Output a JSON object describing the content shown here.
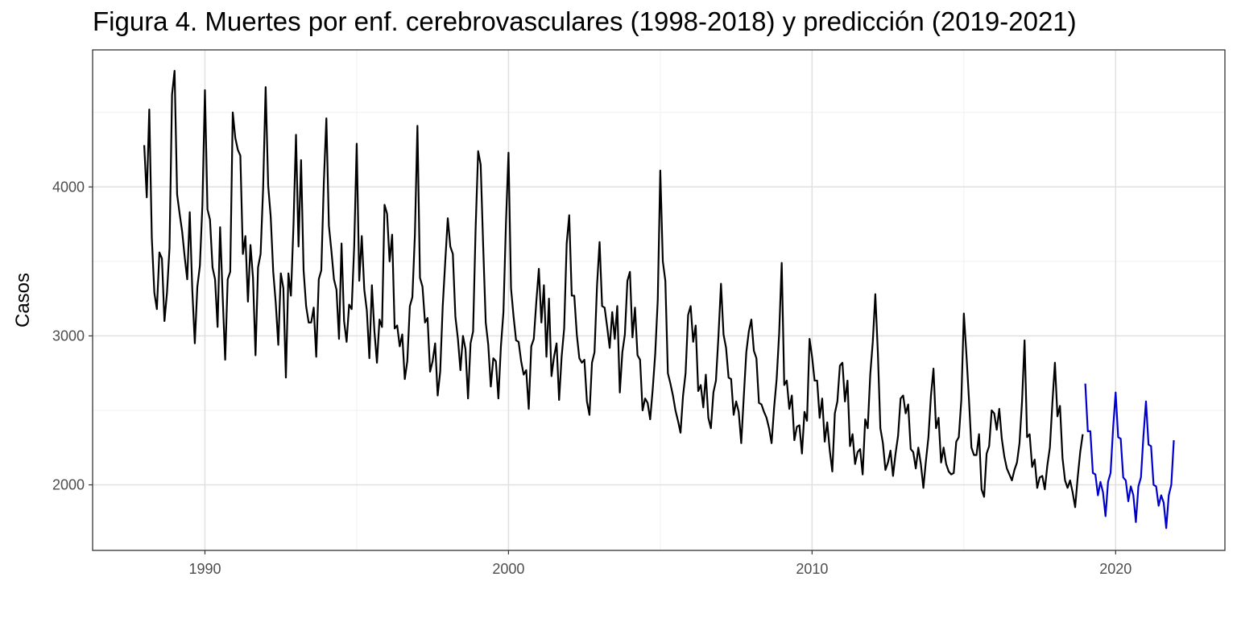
{
  "chart_data": {
    "type": "line",
    "title": "Figura 4. Muertes por enf. cerebrovasculares (1998-2018) y predicción (2019-2021)",
    "xlabel": "",
    "ylabel": "Casos",
    "xlim": [
      1986.3,
      2023.6
    ],
    "ylim": [
      1560,
      4920
    ],
    "x_ticks": [
      1990,
      2000,
      2010,
      2020
    ],
    "x_tick_labels": [
      "1990",
      "2000",
      "2010",
      "2020"
    ],
    "y_ticks": [
      2000,
      3000,
      4000
    ],
    "y_tick_labels": [
      "2000",
      "3000",
      "4000"
    ],
    "grid": true,
    "legend": "none",
    "colors": {
      "observed": "#000000",
      "forecast": "#0000cc",
      "grid_major": "#e0e0e0",
      "grid_minor": "#f0f0f0",
      "panel_border": "#333333"
    },
    "start_year": 1988,
    "series": [
      {
        "values": [
          4280,
          3930,
          4520,
          3660,
          3290,
          3180,
          3560,
          3520,
          3100,
          3290,
          3590,
          4620,
          4780,
          3950,
          3820,
          3700,
          3530,
          3380,
          3830,
          3310,
          2950,
          3330,
          3470,
          3880,
          4650,
          3850,
          3780,
          3460,
          3380,
          3060,
          3730,
          3270,
          2840,
          3380,
          3430,
          4500,
          4330,
          4250,
          4210,
          3550,
          3670,
          3230,
          3610,
          3390,
          2870,
          3460,
          3550,
          3990,
          4670,
          4010,
          3800,
          3430,
          3220,
          2940,
          3420,
          3320,
          2720,
          3420,
          3270,
          3740,
          4350,
          3600,
          4180,
          3440,
          3200,
          3090,
          3090,
          3190,
          2860,
          3380,
          3440,
          4030,
          4460,
          3740,
          3570,
          3380,
          3310,
          2980,
          3620,
          3100,
          2960,
          3210,
          3180,
          3600,
          4290,
          3370,
          3670,
          3310,
          3170,
          2850,
          3340,
          3030,
          2820,
          3110,
          3060,
          3880,
          3820,
          3500,
          3680,
          3050,
          3070,
          2930,
          3010,
          2710,
          2830,
          3200,
          3260,
          3680,
          4410,
          3390,
          3330,
          3090,
          3120,
          2760,
          2830,
          2950,
          2600,
          2760,
          3200,
          3500,
          3790,
          3600,
          3550,
          3130,
          2980,
          2770,
          3000,
          2910,
          2580,
          2950,
          3030,
          3720,
          4240,
          4150,
          3600,
          3090,
          2940,
          2660,
          2850,
          2830,
          2580,
          2930,
          3160,
          3760,
          4230,
          3320,
          3130,
          2970,
          2960,
          2830,
          2740,
          2770,
          2510,
          2930,
          2980,
          3230,
          3450,
          3090,
          3340,
          2860,
          3250,
          2730,
          2860,
          2950,
          2570,
          2860,
          3050,
          3620,
          3810,
          3270,
          3270,
          3010,
          2850,
          2820,
          2840,
          2560,
          2470,
          2820,
          2890,
          3340,
          3630,
          3200,
          3190,
          3060,
          2920,
          3160,
          2980,
          3200,
          2620,
          2890,
          3010,
          3370,
          3430,
          2990,
          3190,
          2870,
          2840,
          2500,
          2580,
          2550,
          2440,
          2640,
          2880,
          3240,
          4110,
          3500,
          3370,
          2750,
          2680,
          2600,
          2500,
          2430,
          2350,
          2600,
          2750,
          3140,
          3200,
          2960,
          3070,
          2630,
          2670,
          2520,
          2740,
          2450,
          2380,
          2620,
          2700,
          3000,
          3350,
          3010,
          2920,
          2720,
          2710,
          2470,
          2560,
          2490,
          2280,
          2590,
          2890,
          3030,
          3110,
          2900,
          2850,
          2550,
          2540,
          2490,
          2450,
          2380,
          2280,
          2520,
          2710,
          3020,
          3490,
          2670,
          2700,
          2510,
          2600,
          2300,
          2390,
          2400,
          2210,
          2490,
          2430,
          2980,
          2860,
          2700,
          2700,
          2450,
          2580,
          2290,
          2420,
          2230,
          2090,
          2480,
          2560,
          2800,
          2820,
          2560,
          2700,
          2260,
          2340,
          2140,
          2220,
          2240,
          2070,
          2440,
          2380,
          2740,
          2960,
          3280,
          2890,
          2380,
          2280,
          2100,
          2150,
          2230,
          2060,
          2210,
          2330,
          2580,
          2600,
          2480,
          2540,
          2240,
          2220,
          2110,
          2250,
          2140,
          1980,
          2160,
          2320,
          2600,
          2780,
          2380,
          2450,
          2150,
          2250,
          2140,
          2090,
          2070,
          2080,
          2290,
          2320,
          2570,
          3150,
          2880,
          2580,
          2250,
          2200,
          2200,
          2340,
          1970,
          1920,
          2210,
          2260,
          2500,
          2480,
          2370,
          2510,
          2310,
          2190,
          2110,
          2070,
          2030,
          2100,
          2150,
          2280,
          2560,
          2970,
          2320,
          2340,
          2120,
          2170,
          1980,
          2050,
          2060,
          1970,
          2130,
          2250,
          2550,
          2820,
          2460,
          2530,
          2180,
          2030,
          1980,
          2030,
          1950,
          1850,
          2050,
          2220,
          2340
        ]
      },
      {
        "values": [
          2680,
          2360,
          2360,
          2080,
          2070,
          1930,
          2020,
          1950,
          1790,
          2020,
          2080,
          2380,
          2620,
          2320,
          2310,
          2050,
          2030,
          1890,
          1990,
          1930,
          1750,
          1990,
          2050,
          2330,
          2560,
          2270,
          2260,
          2000,
          1990,
          1860,
          1930,
          1880,
          1710,
          1930,
          2000,
          2300
        ],
        "start_index": 372
      }
    ]
  }
}
